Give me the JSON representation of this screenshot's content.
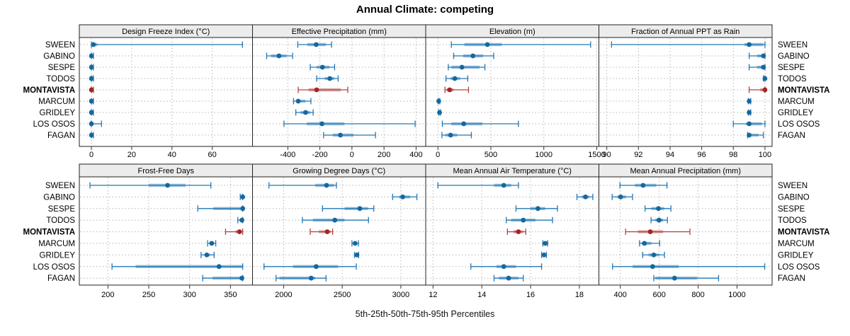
{
  "title": "Annual Climate: competing",
  "caption": "5th-25th-50th-75th-95th Percentiles",
  "sites": [
    "SWEEN",
    "GABINO",
    "SESPE",
    "TODOS",
    "MONTAVISTA",
    "MARCUM",
    "GRIDLEY",
    "LOS OSOS",
    "FAGAN"
  ],
  "highlighted_site": "MONTAVISTA",
  "colors": {
    "point": "#15689E",
    "range": "#2277B4",
    "highlight_point": "#A32525",
    "highlight_range": "#B64040",
    "band_opacity": 0.45,
    "strip_bg": "#ECECEC",
    "grid": "#B5B5B5",
    "border": "#222222",
    "tick": "#333333",
    "text": "#000000"
  },
  "chart_data": {
    "type": "scatter",
    "subtype": "trellis-percentile-dotplot",
    "statistic": "5th-25th-50th-75th-95th percentiles per site",
    "grid_layout": [
      2,
      4
    ],
    "legend_position": "none",
    "grid": "dotted",
    "panels": [
      {
        "title": "Design Freeze Index (°C)",
        "xlim": [
          -6,
          80
        ],
        "ticks": [
          0,
          20,
          40,
          60
        ],
        "percentiles": {
          "SWEEN": [
            0,
            0.5,
            1,
            3,
            75
          ],
          "GABINO": [
            0,
            0,
            0,
            0,
            1
          ],
          "SESPE": [
            0,
            0,
            0,
            0,
            1
          ],
          "TODOS": [
            0,
            0,
            0,
            0,
            1
          ],
          "MONTAVISTA": [
            0,
            0,
            0,
            0,
            1
          ],
          "MARCUM": [
            0,
            0,
            0,
            0,
            1
          ],
          "GRIDLEY": [
            0,
            0,
            0,
            0,
            1
          ],
          "LOS OSOS": [
            0,
            0,
            0,
            1,
            5
          ],
          "FAGAN": [
            0,
            0,
            0,
            0,
            1
          ]
        }
      },
      {
        "title": "Effective Precipitation (mm)",
        "xlim": [
          -620,
          460
        ],
        "ticks": [
          -400,
          -200,
          0,
          200,
          400
        ],
        "percentiles": {
          "SWEEN": [
            -338,
            -278,
            -223,
            -163,
            -127
          ],
          "GABINO": [
            -532,
            -505,
            -455,
            -408,
            -370
          ],
          "SESPE": [
            -260,
            -220,
            -184,
            -140,
            -108
          ],
          "TODOS": [
            -220,
            -170,
            -138,
            -110,
            -86
          ],
          "MONTAVISTA": [
            -335,
            -270,
            -220,
            -70,
            -26
          ],
          "MARCUM": [
            -364,
            -348,
            -335,
            -290,
            -256
          ],
          "GRIDLEY": [
            -350,
            -320,
            -289,
            -260,
            -242
          ],
          "LOS OSOS": [
            -424,
            -282,
            -187,
            -47,
            394
          ],
          "FAGAN": [
            -177,
            -120,
            -72,
            10,
            147
          ]
        }
      },
      {
        "title": "Elevation (m)",
        "xlim": [
          -115,
          1520
        ],
        "ticks": [
          0,
          500,
          1000,
          1500
        ],
        "percentiles": {
          "SWEEN": [
            127,
            250,
            467,
            604,
            1442
          ],
          "GABINO": [
            149,
            238,
            331,
            427,
            527
          ],
          "SESPE": [
            98,
            127,
            227,
            393,
            444
          ],
          "TODOS": [
            76,
            120,
            160,
            210,
            282
          ],
          "MONTAVISTA": [
            67,
            82,
            111,
            150,
            289
          ],
          "MARCUM": [
            3,
            5,
            8,
            12,
            18
          ],
          "GRIDLEY": [
            8,
            12,
            16,
            20,
            25
          ],
          "LOS OSOS": [
            42,
            127,
            244,
            420,
            760
          ],
          "FAGAN": [
            38,
            71,
            120,
            182,
            316
          ]
        }
      },
      {
        "title": "Fraction of Annual PPT as Rain",
        "xlim": [
          89.5,
          100.45
        ],
        "ticks": [
          90,
          92,
          94,
          96,
          98,
          100
        ],
        "percentiles": {
          "SWEEN": [
            90.3,
            98.7,
            99.0,
            99.9,
            100
          ],
          "GABINO": [
            99.0,
            99.5,
            99.9,
            100,
            100
          ],
          "SESPE": [
            99.0,
            99.5,
            99.9,
            100,
            100
          ],
          "TODOS": [
            99.9,
            100,
            100,
            100,
            100
          ],
          "MONTAVISTA": [
            99.0,
            99.7,
            100,
            100,
            100
          ],
          "MARCUM": [
            98.95,
            99.0,
            99.0,
            99.05,
            99.1
          ],
          "GRIDLEY": [
            98.95,
            99.0,
            99.0,
            99.05,
            99.1
          ],
          "LOS OSOS": [
            98.0,
            98.8,
            99.0,
            99.8,
            100
          ],
          "FAGAN": [
            98.9,
            99.0,
            99.0,
            99.6,
            99.9
          ]
        }
      },
      {
        "title": "Frost-Free Days",
        "xlim": [
          165,
          377
        ],
        "ticks": [
          200,
          250,
          300,
          350
        ],
        "percentiles": {
          "SWEEN": [
            178,
            250,
            273,
            295,
            326
          ],
          "GABINO": [
            362,
            364,
            365,
            365,
            365
          ],
          "SESPE": [
            310,
            329,
            365,
            365,
            365
          ],
          "TODOS": [
            359,
            362,
            364,
            365,
            365
          ],
          "MONTAVISTA": [
            344,
            356,
            361,
            364,
            365
          ],
          "MARCUM": [
            322,
            325,
            327,
            330,
            332
          ],
          "GRIDLEY": [
            314,
            319,
            321,
            325,
            330
          ],
          "LOS OSOS": [
            205,
            234,
            336,
            365,
            365
          ],
          "FAGAN": [
            316,
            328,
            364,
            365,
            365
          ]
        }
      },
      {
        "title": "Growing Degree Days (°C)",
        "xlim": [
          1735,
          3212
        ],
        "ticks": [
          2000,
          2500,
          3000
        ],
        "percentiles": {
          "SWEEN": [
            1875,
            2270,
            2366,
            2430,
            2450
          ],
          "GABINO": [
            2930,
            2985,
            3016,
            3080,
            3137
          ],
          "SESPE": [
            2332,
            2520,
            2650,
            2720,
            2769
          ],
          "TODOS": [
            2160,
            2250,
            2437,
            2520,
            2724
          ],
          "MONTAVISTA": [
            2227,
            2300,
            2372,
            2400,
            2418
          ],
          "MARCUM": [
            2583,
            2600,
            2610,
            2625,
            2638
          ],
          "GRIDLEY": [
            2605,
            2615,
            2625,
            2632,
            2640
          ],
          "LOS OSOS": [
            1833,
            2080,
            2278,
            2463,
            2620
          ],
          "FAGAN": [
            1935,
            1965,
            2235,
            2270,
            2362
          ]
        }
      },
      {
        "title": "Mean Annual Air Temperature (°C)",
        "xlim": [
          11.7,
          18.8
        ],
        "ticks": [
          12,
          14,
          16,
          18
        ],
        "percentiles": {
          "SWEEN": [
            12.2,
            14.5,
            14.9,
            15.2,
            15.5
          ],
          "GABINO": [
            17.9,
            18.1,
            18.25,
            18.4,
            18.55
          ],
          "SESPE": [
            15.4,
            16.0,
            16.3,
            16.6,
            17.1
          ],
          "TODOS": [
            15.0,
            15.2,
            15.7,
            16.2,
            16.9
          ],
          "MONTAVISTA": [
            15.05,
            15.3,
            15.5,
            15.7,
            15.8
          ],
          "MARCUM": [
            16.5,
            16.55,
            16.6,
            16.65,
            16.7
          ],
          "GRIDLEY": [
            16.45,
            16.5,
            16.55,
            16.6,
            16.65
          ],
          "LOS OSOS": [
            13.55,
            14.6,
            14.9,
            15.4,
            16.45
          ],
          "FAGAN": [
            14.5,
            14.7,
            15.1,
            15.5,
            15.7
          ]
        }
      },
      {
        "title": "Mean Annual Precipitation (mm)",
        "xlim": [
          290,
          1180
        ],
        "ticks": [
          400,
          600,
          800,
          1000
        ],
        "percentiles": {
          "SWEEN": [
            398,
            475,
            517,
            585,
            640
          ],
          "GABINO": [
            358,
            385,
            402,
            430,
            463
          ],
          "SESPE": [
            527,
            560,
            596,
            625,
            660
          ],
          "TODOS": [
            558,
            580,
            599,
            620,
            642
          ],
          "MONTAVISTA": [
            427,
            490,
            554,
            620,
            758
          ],
          "MARCUM": [
            499,
            510,
            524,
            560,
            602
          ],
          "GRIDLEY": [
            515,
            545,
            572,
            600,
            627
          ],
          "LOS OSOS": [
            360,
            463,
            566,
            700,
            1142
          ],
          "FAGAN": [
            572,
            580,
            679,
            795,
            905
          ]
        }
      }
    ]
  }
}
